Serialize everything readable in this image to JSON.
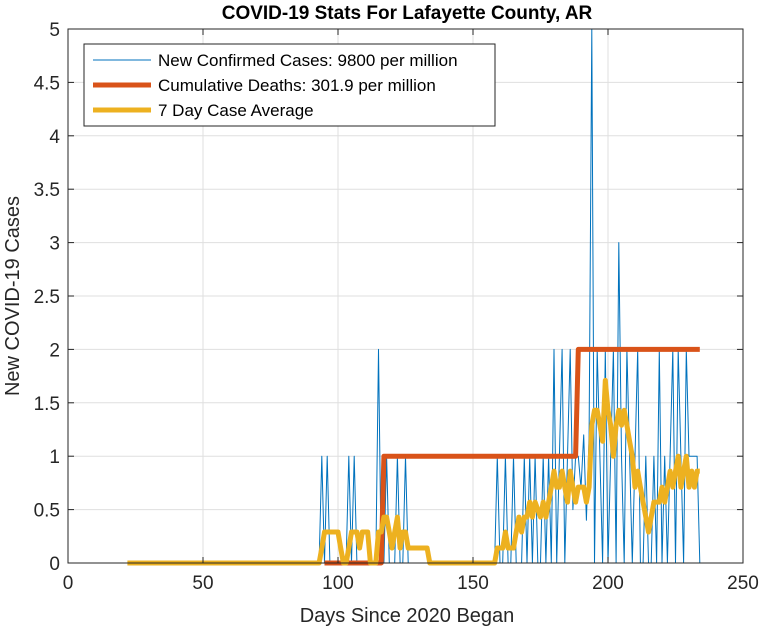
{
  "chart_data": {
    "type": "line",
    "title": "COVID-19 Stats For Lafayette County, AR",
    "xlabel": "Days Since 2020 Began",
    "ylabel": "New COVID-19 Cases",
    "xlim": [
      0,
      250
    ],
    "ylim": [
      0,
      5
    ],
    "xticks": [
      0,
      50,
      100,
      150,
      200,
      250
    ],
    "yticks": [
      0,
      0.5,
      1,
      1.5,
      2,
      2.5,
      3,
      3.5,
      4,
      4.5,
      5
    ],
    "xtick_labels": [
      "0",
      "50",
      "100",
      "150",
      "200",
      "250"
    ],
    "ytick_labels": [
      "0",
      "0.5",
      "1",
      "1.5",
      "2",
      "2.5",
      "3",
      "3.5",
      "4",
      "4.5",
      "5"
    ],
    "grid": true,
    "legend_position": "top-left",
    "series": [
      {
        "name": "New Confirmed Cases: 9800 per million",
        "color": "#0072BD",
        "line_width": "thin",
        "points": [
          [
            22,
            0
          ],
          [
            93,
            0
          ],
          [
            94,
            1
          ],
          [
            95,
            0
          ],
          [
            96,
            1
          ],
          [
            97,
            0
          ],
          [
            98,
            0
          ],
          [
            99,
            0
          ],
          [
            100,
            0
          ],
          [
            101,
            0
          ],
          [
            102,
            0
          ],
          [
            103,
            0
          ],
          [
            104,
            1
          ],
          [
            105,
            0
          ],
          [
            106,
            1
          ],
          [
            107,
            0
          ],
          [
            108,
            0
          ],
          [
            109,
            0
          ],
          [
            110,
            0
          ],
          [
            111,
            0
          ],
          [
            112,
            0
          ],
          [
            113,
            0
          ],
          [
            114,
            0
          ],
          [
            115,
            2
          ],
          [
            116,
            0
          ],
          [
            117,
            0
          ],
          [
            118,
            1
          ],
          [
            119,
            0
          ],
          [
            120,
            0
          ],
          [
            121,
            0
          ],
          [
            122,
            1
          ],
          [
            123,
            0
          ],
          [
            124,
            0
          ],
          [
            125,
            1
          ],
          [
            126,
            0
          ],
          [
            127,
            0
          ],
          [
            158,
            0
          ],
          [
            159,
            1
          ],
          [
            160,
            0
          ],
          [
            161,
            0
          ],
          [
            162,
            1
          ],
          [
            163,
            0
          ],
          [
            164,
            0
          ],
          [
            165,
            1
          ],
          [
            166,
            0
          ],
          [
            167,
            0
          ],
          [
            168,
            0
          ],
          [
            169,
            1
          ],
          [
            170,
            0
          ],
          [
            171,
            1
          ],
          [
            172,
            0
          ],
          [
            173,
            1
          ],
          [
            174,
            0
          ],
          [
            175,
            0
          ],
          [
            176,
            1
          ],
          [
            177,
            0
          ],
          [
            178,
            1
          ],
          [
            179,
            0
          ],
          [
            180,
            2
          ],
          [
            181,
            0
          ],
          [
            182,
            1
          ],
          [
            183,
            2
          ],
          [
            184,
            0
          ],
          [
            185,
            1
          ],
          [
            186,
            2
          ],
          [
            187,
            0.5
          ],
          [
            188,
            1
          ],
          [
            189,
            1
          ],
          [
            190,
            0.7
          ],
          [
            191,
            1.2
          ],
          [
            192,
            0.4
          ],
          [
            193,
            1.2
          ],
          [
            194,
            5
          ],
          [
            195,
            0
          ],
          [
            196,
            2
          ],
          [
            197,
            1
          ],
          [
            198,
            0
          ],
          [
            199,
            2
          ],
          [
            200,
            0
          ],
          [
            201,
            1
          ],
          [
            202,
            2
          ],
          [
            203,
            0
          ],
          [
            204,
            3
          ],
          [
            205,
            1
          ],
          [
            206,
            0
          ],
          [
            207,
            2
          ],
          [
            208,
            1
          ],
          [
            209,
            0
          ],
          [
            210,
            1
          ],
          [
            211,
            2
          ],
          [
            212,
            0
          ],
          [
            213,
            0
          ],
          [
            214,
            1
          ],
          [
            215,
            0
          ],
          [
            216,
            0
          ],
          [
            217,
            1
          ],
          [
            218,
            0
          ],
          [
            219,
            2
          ],
          [
            220,
            0
          ],
          [
            221,
            1
          ],
          [
            222,
            0
          ],
          [
            223,
            1
          ],
          [
            224,
            2
          ],
          [
            225,
            0
          ],
          [
            226,
            2
          ],
          [
            227,
            1
          ],
          [
            228,
            0
          ],
          [
            229,
            2
          ],
          [
            230,
            1
          ],
          [
            231,
            1
          ],
          [
            232,
            1
          ],
          [
            233,
            1
          ],
          [
            234,
            0
          ]
        ]
      },
      {
        "name": "Cumulative Deaths: 301.9 per million",
        "color": "#D95319",
        "line_width": "thick",
        "points": [
          [
            95,
            0
          ],
          [
            116,
            0
          ],
          [
            117,
            1
          ],
          [
            188,
            1
          ],
          [
            189,
            2
          ],
          [
            234,
            2
          ]
        ]
      },
      {
        "name": "7 Day Case Average",
        "color": "#EDB120",
        "line_width": "thick",
        "points": [
          [
            22,
            0
          ],
          [
            93,
            0
          ],
          [
            94,
            0.14
          ],
          [
            95,
            0.29
          ],
          [
            97,
            0.29
          ],
          [
            100,
            0.29
          ],
          [
            101,
            0.14
          ],
          [
            102,
            0
          ],
          [
            103,
            0
          ],
          [
            104,
            0.14
          ],
          [
            105,
            0.29
          ],
          [
            107,
            0.29
          ],
          [
            108,
            0.14
          ],
          [
            109,
            0.29
          ],
          [
            111,
            0.29
          ],
          [
            112,
            0
          ],
          [
            114,
            0
          ],
          [
            115,
            0.29
          ],
          [
            116,
            0.29
          ],
          [
            117,
            0.43
          ],
          [
            118,
            0.43
          ],
          [
            119,
            0.29
          ],
          [
            120,
            0.14
          ],
          [
            121,
            0.29
          ],
          [
            122,
            0.43
          ],
          [
            123,
            0.14
          ],
          [
            124,
            0.29
          ],
          [
            125,
            0.29
          ],
          [
            126,
            0.14
          ],
          [
            127,
            0.14
          ],
          [
            133,
            0.14
          ],
          [
            134,
            0
          ],
          [
            158,
            0
          ],
          [
            159,
            0.14
          ],
          [
            161,
            0.14
          ],
          [
            162,
            0.29
          ],
          [
            163,
            0.14
          ],
          [
            165,
            0.14
          ],
          [
            166,
            0.29
          ],
          [
            167,
            0.43
          ],
          [
            168,
            0.29
          ],
          [
            169,
            0.43
          ],
          [
            170,
            0.43
          ],
          [
            171,
            0.57
          ],
          [
            172,
            0.43
          ],
          [
            173,
            0.57
          ],
          [
            175,
            0.43
          ],
          [
            176,
            0.57
          ],
          [
            177,
            0.43
          ],
          [
            178,
            0.57
          ],
          [
            179,
            0.71
          ],
          [
            180,
            0.86
          ],
          [
            181,
            0.71
          ],
          [
            182,
            0.71
          ],
          [
            183,
            0.86
          ],
          [
            184,
            0.71
          ],
          [
            185,
            0.57
          ],
          [
            186,
            0.86
          ],
          [
            187,
            0.71
          ],
          [
            188,
            0.57
          ],
          [
            189,
            0.71
          ],
          [
            190,
            0.71
          ],
          [
            191,
            0.71
          ],
          [
            192,
            0.57
          ],
          [
            193,
            0.71
          ],
          [
            194,
            1.29
          ],
          [
            195,
            1.43
          ],
          [
            196,
            1.43
          ],
          [
            197,
            1.29
          ],
          [
            198,
            1.14
          ],
          [
            199,
            1.71
          ],
          [
            200,
            1.43
          ],
          [
            201,
            1.29
          ],
          [
            202,
            1.0
          ],
          [
            203,
            1.29
          ],
          [
            204,
            1.43
          ],
          [
            205,
            1.29
          ],
          [
            206,
            1.43
          ],
          [
            207,
            1.29
          ],
          [
            208,
            1.14
          ],
          [
            209,
            1.0
          ],
          [
            210,
            0.71
          ],
          [
            211,
            0.86
          ],
          [
            212,
            0.71
          ],
          [
            213,
            0.57
          ],
          [
            214,
            0.43
          ],
          [
            215,
            0.29
          ],
          [
            216,
            0.43
          ],
          [
            217,
            0.57
          ],
          [
            218,
            0.57
          ],
          [
            219,
            0.57
          ],
          [
            220,
            0.71
          ],
          [
            221,
            0.57
          ],
          [
            222,
            0.71
          ],
          [
            223,
            0.86
          ],
          [
            224,
            0.71
          ],
          [
            225,
            0.86
          ],
          [
            226,
            1.0
          ],
          [
            227,
            0.71
          ],
          [
            228,
            0.86
          ],
          [
            229,
            1.0
          ],
          [
            230,
            0.71
          ],
          [
            231,
            0.86
          ],
          [
            232,
            0.71
          ],
          [
            233,
            0.86
          ],
          [
            234,
            0.86
          ]
        ]
      }
    ]
  }
}
